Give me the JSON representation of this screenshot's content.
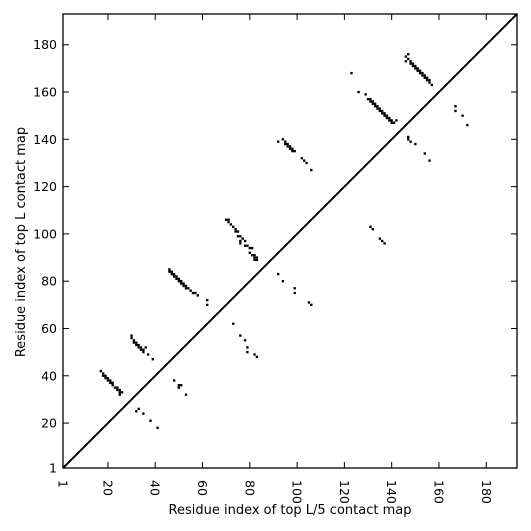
{
  "chart_data": {
    "type": "scatter",
    "xlabel": "Residue index of top L/5 contact map",
    "ylabel": "Residue index of top L contact map",
    "xlim": [
      1,
      193
    ],
    "ylim": [
      1,
      193
    ],
    "xticks": [
      1,
      20,
      40,
      60,
      80,
      100,
      120,
      140,
      160,
      180
    ],
    "yticks": [
      1,
      20,
      40,
      60,
      80,
      100,
      120,
      140,
      160,
      180
    ],
    "marker": "square",
    "marker_color": "#000000",
    "diagonal": true,
    "grid": false,
    "series": [
      {
        "values": [
          [
            17,
            42
          ],
          [
            18,
            41
          ],
          [
            18,
            40
          ],
          [
            19,
            40
          ],
          [
            19,
            39
          ],
          [
            20,
            39
          ],
          [
            20,
            38
          ],
          [
            21,
            38
          ],
          [
            21,
            37
          ],
          [
            22,
            37
          ],
          [
            22,
            36
          ],
          [
            23,
            35
          ],
          [
            24,
            35
          ],
          [
            24,
            34
          ],
          [
            25,
            34
          ],
          [
            25,
            33
          ],
          [
            26,
            33
          ],
          [
            25,
            32
          ],
          [
            30,
            57
          ],
          [
            30,
            56
          ],
          [
            31,
            55
          ],
          [
            31,
            54
          ],
          [
            32,
            54
          ],
          [
            32,
            53
          ],
          [
            33,
            53
          ],
          [
            33,
            52
          ],
          [
            34,
            52
          ],
          [
            34,
            51
          ],
          [
            35,
            51
          ],
          [
            35,
            50
          ],
          [
            36,
            52
          ],
          [
            37,
            49
          ],
          [
            39,
            47
          ],
          [
            33,
            26
          ],
          [
            32,
            25
          ],
          [
            35,
            24
          ],
          [
            38,
            21
          ],
          [
            41,
            18
          ],
          [
            46,
            85
          ],
          [
            46,
            84
          ],
          [
            47,
            84
          ],
          [
            47,
            83
          ],
          [
            48,
            83
          ],
          [
            48,
            82
          ],
          [
            49,
            82
          ],
          [
            49,
            81
          ],
          [
            50,
            81
          ],
          [
            50,
            80
          ],
          [
            51,
            80
          ],
          [
            51,
            79
          ],
          [
            52,
            79
          ],
          [
            52,
            78
          ],
          [
            53,
            78
          ],
          [
            53,
            77
          ],
          [
            54,
            77
          ],
          [
            55,
            76
          ],
          [
            56,
            75
          ],
          [
            57,
            75
          ],
          [
            58,
            74
          ],
          [
            62,
            72
          ],
          [
            62,
            70
          ],
          [
            48,
            38
          ],
          [
            50,
            36
          ],
          [
            51,
            36
          ],
          [
            50,
            35
          ],
          [
            53,
            32
          ],
          [
            70,
            106
          ],
          [
            71,
            106
          ],
          [
            71,
            105
          ],
          [
            72,
            104
          ],
          [
            73,
            103
          ],
          [
            74,
            102
          ],
          [
            74,
            101
          ],
          [
            75,
            101
          ],
          [
            75,
            99
          ],
          [
            76,
            99
          ],
          [
            77,
            98
          ],
          [
            76,
            97
          ],
          [
            78,
            97
          ],
          [
            76,
            96
          ],
          [
            78,
            95
          ],
          [
            79,
            95
          ],
          [
            80,
            94
          ],
          [
            81,
            94
          ],
          [
            80,
            92
          ],
          [
            81,
            91
          ],
          [
            82,
            91
          ],
          [
            82,
            90
          ],
          [
            83,
            90
          ],
          [
            82,
            89
          ],
          [
            83,
            89
          ],
          [
            92,
            83
          ],
          [
            94,
            80
          ],
          [
            99,
            77
          ],
          [
            99,
            75
          ],
          [
            105,
            71
          ],
          [
            106,
            70
          ],
          [
            73,
            62
          ],
          [
            76,
            57
          ],
          [
            78,
            55
          ],
          [
            79,
            52
          ],
          [
            79,
            50
          ],
          [
            82,
            49
          ],
          [
            83,
            48
          ],
          [
            92,
            139
          ],
          [
            94,
            140
          ],
          [
            95,
            139
          ],
          [
            95,
            138
          ],
          [
            96,
            138
          ],
          [
            96,
            137
          ],
          [
            97,
            137
          ],
          [
            97,
            136
          ],
          [
            98,
            136
          ],
          [
            98,
            135
          ],
          [
            99,
            135
          ],
          [
            102,
            132
          ],
          [
            103,
            131
          ],
          [
            104,
            130
          ],
          [
            106,
            127
          ],
          [
            123,
            168
          ],
          [
            126,
            160
          ],
          [
            129,
            159
          ],
          [
            130,
            157
          ],
          [
            131,
            157
          ],
          [
            131,
            156
          ],
          [
            132,
            156
          ],
          [
            132,
            155
          ],
          [
            133,
            155
          ],
          [
            133,
            154
          ],
          [
            134,
            154
          ],
          [
            134,
            153
          ],
          [
            135,
            153
          ],
          [
            135,
            152
          ],
          [
            136,
            152
          ],
          [
            136,
            151
          ],
          [
            137,
            151
          ],
          [
            137,
            150
          ],
          [
            138,
            150
          ],
          [
            138,
            149
          ],
          [
            139,
            149
          ],
          [
            139,
            148
          ],
          [
            140,
            148
          ],
          [
            140,
            147
          ],
          [
            141,
            147
          ],
          [
            142,
            148
          ],
          [
            147,
            176
          ],
          [
            146,
            175
          ],
          [
            147,
            174
          ],
          [
            146,
            173
          ],
          [
            148,
            173
          ],
          [
            148,
            172
          ],
          [
            149,
            172
          ],
          [
            149,
            171
          ],
          [
            150,
            171
          ],
          [
            150,
            170
          ],
          [
            151,
            170
          ],
          [
            151,
            169
          ],
          [
            152,
            169
          ],
          [
            152,
            168
          ],
          [
            153,
            168
          ],
          [
            153,
            167
          ],
          [
            154,
            167
          ],
          [
            154,
            166
          ],
          [
            155,
            166
          ],
          [
            155,
            165
          ],
          [
            156,
            165
          ],
          [
            156,
            164
          ],
          [
            157,
            163
          ],
          [
            131,
            103
          ],
          [
            132,
            102
          ],
          [
            135,
            98
          ],
          [
            136,
            97
          ],
          [
            137,
            96
          ],
          [
            147,
            141
          ],
          [
            147,
            140
          ],
          [
            148,
            139
          ],
          [
            150,
            138
          ],
          [
            154,
            134
          ],
          [
            156,
            131
          ],
          [
            167,
            154
          ],
          [
            167,
            152
          ],
          [
            170,
            150
          ],
          [
            172,
            146
          ]
        ]
      }
    ]
  }
}
